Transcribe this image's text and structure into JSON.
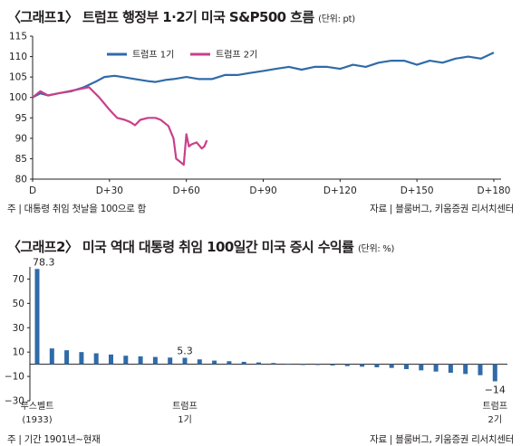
{
  "chart1": {
    "title": "〈그래프1〉 트럼프 행정부 1·2기 미국 S&P500 흐름",
    "unit": "(단위: pt)",
    "footnote": "주 | 대통령 취임 첫날을 100으로 함",
    "source": "자료 | 블룸버그, 키움증권 리서치센터"
  },
  "chart2": {
    "title": "〈그래프2〉 미국 역대 대통령 취임 100일간 미국 증시 수익률",
    "unit": "(단위: %)",
    "footnote": "주 | 기간 1901년~현재",
    "source": "자료 | 블룸버그, 키움증권 리서치센터"
  },
  "chart_data": [
    {
      "type": "line",
      "title": "〈그래프1〉 트럼프 행정부 1·2기 미국 S&P500 흐름",
      "xlabel": "",
      "ylabel": "",
      "xticks": [
        "D",
        "D+30",
        "D+60",
        "D+90",
        "D+120",
        "D+150",
        "D+180"
      ],
      "yticks": [
        80,
        85,
        90,
        95,
        100,
        105,
        110,
        115
      ],
      "xlim": [
        0,
        180
      ],
      "ylim": [
        80,
        115
      ],
      "grid": false,
      "legend": "top-left",
      "series": [
        {
          "name": "트럼프 1기",
          "color": "#2f6ba8",
          "x": [
            0,
            3,
            6,
            10,
            15,
            20,
            25,
            28,
            32,
            35,
            40,
            45,
            48,
            52,
            55,
            60,
            65,
            70,
            75,
            80,
            85,
            90,
            95,
            100,
            105,
            110,
            115,
            120,
            125,
            130,
            135,
            140,
            145,
            150,
            155,
            160,
            165,
            170,
            175,
            180
          ],
          "values": [
            100,
            101,
            100.5,
            101,
            101.5,
            102.5,
            104,
            105,
            105.3,
            105,
            104.5,
            104,
            103.8,
            104.3,
            104.5,
            105,
            104.5,
            104.5,
            105.5,
            105.5,
            106,
            106.5,
            107,
            107.5,
            106.8,
            107.5,
            107.5,
            107,
            108,
            107.5,
            108.5,
            109,
            109,
            108,
            109,
            108.5,
            109.5,
            110,
            109.5,
            111
          ]
        },
        {
          "name": "트럼프 2기",
          "color": "#c9408a",
          "x": [
            0,
            3,
            6,
            10,
            14,
            18,
            22,
            26,
            28,
            30,
            33,
            36,
            38,
            40,
            42,
            45,
            48,
            50,
            53,
            55,
            56,
            58,
            59,
            60,
            61,
            62,
            64,
            66,
            67,
            68
          ],
          "values": [
            100,
            101.5,
            100.5,
            101,
            101.5,
            102,
            102.5,
            100,
            98.5,
            97,
            95,
            94.5,
            94,
            93.2,
            94.5,
            95,
            95,
            94.5,
            93,
            90,
            85,
            84,
            83.5,
            91,
            88,
            88.5,
            89,
            87.5,
            88,
            89.5
          ]
        }
      ]
    },
    {
      "type": "bar",
      "title": "〈그래프2〉 미국 역대 대통령 취임 100일간 미국 증시 수익률",
      "xlabel": "",
      "ylabel": "",
      "ylim": [
        -30,
        80
      ],
      "yticks": [
        -30,
        -10,
        10,
        30,
        50,
        70
      ],
      "grid": false,
      "labeled": [
        {
          "index": 0,
          "label": "루스벨트 (1933)",
          "value_label": "78.3"
        },
        {
          "index": 10,
          "label": "트럼프 1기",
          "value_label": "5.3"
        },
        {
          "index": 31,
          "label": "트럼프 2기",
          "value_label": "−14"
        }
      ],
      "values": [
        78.3,
        13,
        11.5,
        10,
        9,
        8,
        7,
        6.5,
        6,
        5.5,
        5.3,
        4,
        3,
        2.5,
        2,
        1.5,
        1,
        0.5,
        0,
        -0.5,
        -1,
        -1.5,
        -2,
        -2.5,
        -3,
        -4,
        -5,
        -6,
        -7,
        -8,
        -9,
        -14
      ]
    }
  ]
}
